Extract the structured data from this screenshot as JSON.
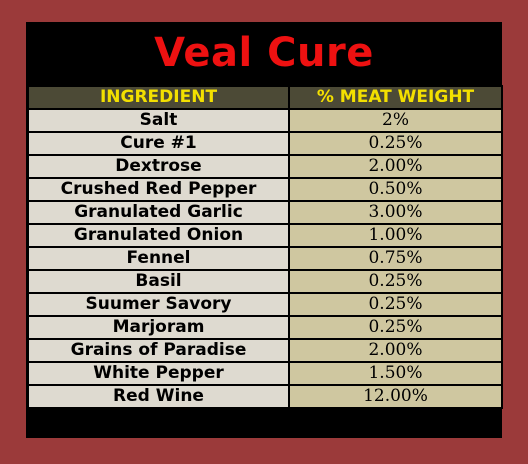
{
  "title": "Veal Cure",
  "colors": {
    "background": "#9b3a3a",
    "frame": "#000000",
    "title": "#ee1111",
    "header_bg": "#4c4a36",
    "header_text": "#f3e000",
    "ingredient_cell": "#dedad0",
    "percent_cell": "#cfc7a0"
  },
  "table": {
    "headers": [
      "INGREDIENT",
      "% MEAT WEIGHT"
    ],
    "rows": [
      {
        "ingredient": "Salt",
        "percent": "2%"
      },
      {
        "ingredient": "Cure #1",
        "percent": "0.25%"
      },
      {
        "ingredient": "Dextrose",
        "percent": "2.00%"
      },
      {
        "ingredient": "Crushed Red Pepper",
        "percent": "0.50%"
      },
      {
        "ingredient": "Granulated Garlic",
        "percent": "3.00%"
      },
      {
        "ingredient": "Granulated Onion",
        "percent": "1.00%"
      },
      {
        "ingredient": "Fennel",
        "percent": "0.75%"
      },
      {
        "ingredient": "Basil",
        "percent": "0.25%"
      },
      {
        "ingredient": "Suumer Savory",
        "percent": "0.25%"
      },
      {
        "ingredient": "Marjoram",
        "percent": "0.25%"
      },
      {
        "ingredient": "Grains of Paradise",
        "percent": "2.00%"
      },
      {
        "ingredient": "White Pepper",
        "percent": "1.50%"
      },
      {
        "ingredient": "Red Wine",
        "percent": "12.00%"
      }
    ]
  }
}
